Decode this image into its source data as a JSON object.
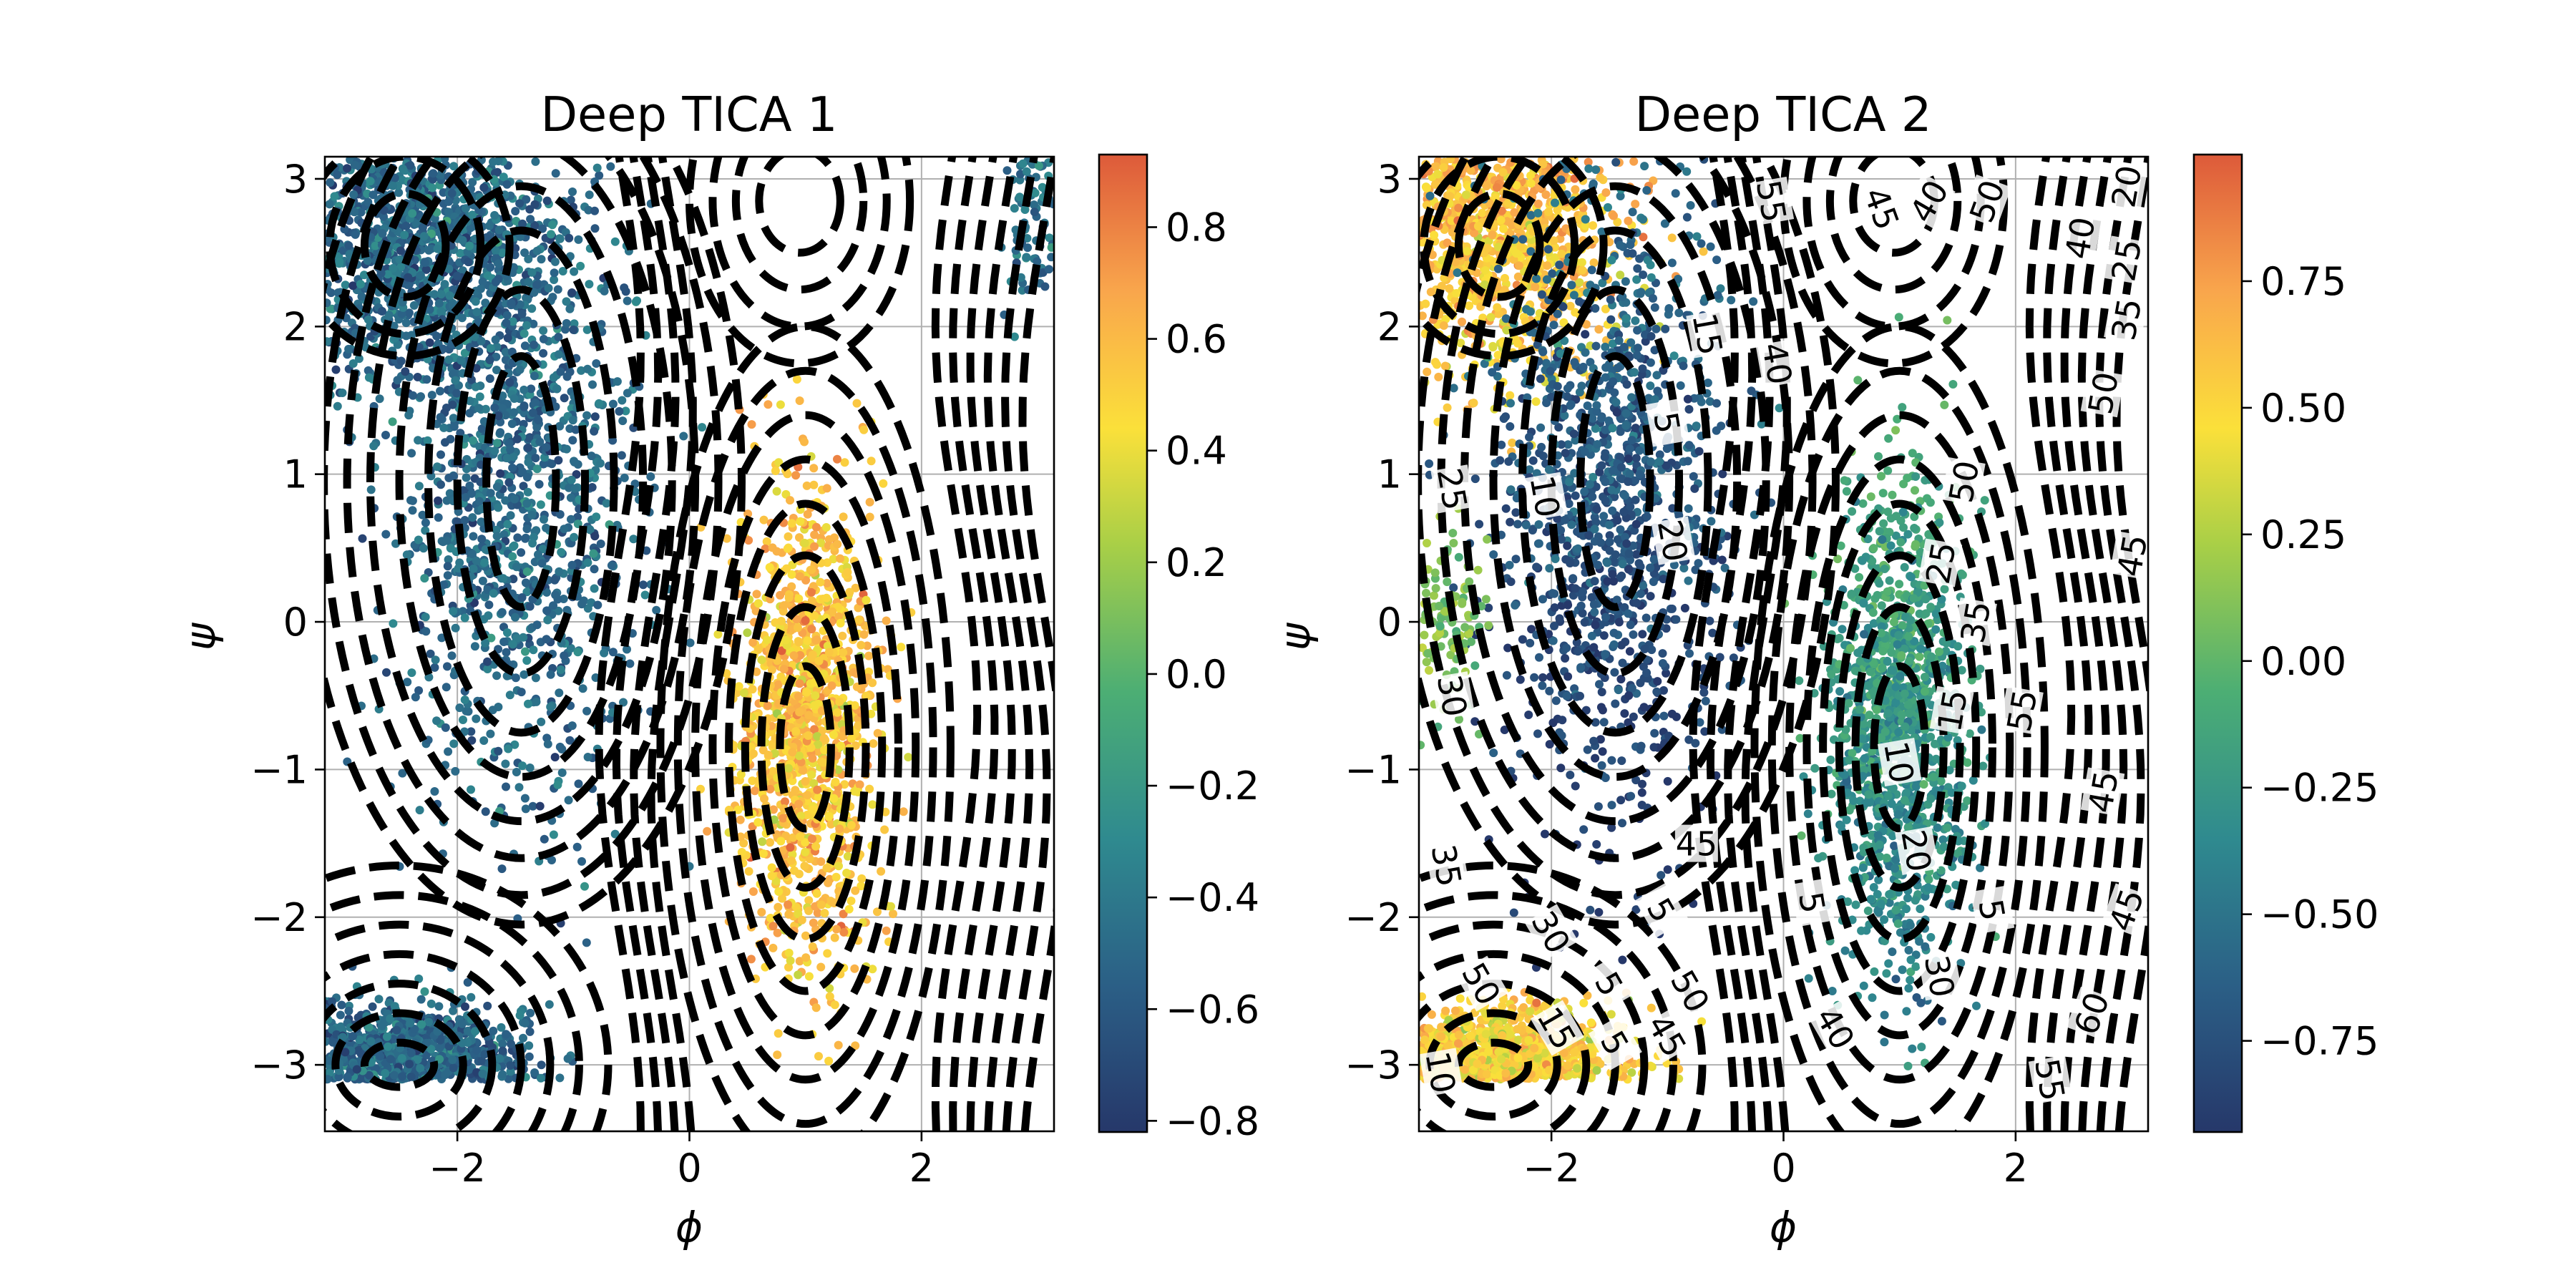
{
  "chart_data": [
    {
      "type": "scatter",
      "title": "Deep TICA 1",
      "xlabel": "ϕ",
      "ylabel": "ψ",
      "xlim": [
        -3.1416,
        3.1416
      ],
      "ylim": [
        -3.45,
        3.15
      ],
      "xticks": [
        {
          "value": -2,
          "label": "−2"
        },
        {
          "value": 0,
          "label": "0"
        },
        {
          "value": 2,
          "label": "2"
        }
      ],
      "yticks": [
        {
          "value": -3,
          "label": "−3"
        },
        {
          "value": -2,
          "label": "−2"
        },
        {
          "value": -1,
          "label": "−1"
        },
        {
          "value": 0,
          "label": "0"
        },
        {
          "value": 1,
          "label": "1"
        },
        {
          "value": 2,
          "label": "2"
        },
        {
          "value": 3,
          "label": "3"
        }
      ],
      "grid": true,
      "colormap": "viridis-to-orange",
      "colorbar": {
        "range": [
          -0.82,
          0.93
        ],
        "ticks": [
          {
            "value": 0.8,
            "label": "0.8"
          },
          {
            "value": 0.6,
            "label": "0.6"
          },
          {
            "value": 0.4,
            "label": "0.4"
          },
          {
            "value": 0.2,
            "label": "0.2"
          },
          {
            "value": 0.0,
            "label": "0.0"
          },
          {
            "value": -0.2,
            "label": "−0.2"
          },
          {
            "value": -0.4,
            "label": "−0.4"
          },
          {
            "value": -0.6,
            "label": "−0.6"
          },
          {
            "value": -0.8,
            "label": "−0.8"
          }
        ]
      },
      "point_clusters": [
        {
          "region": "upper-left basin",
          "phi": -2.4,
          "psi": 2.6,
          "value": -0.5
        },
        {
          "region": "alpha-R basin",
          "phi": -1.5,
          "psi": 0.9,
          "value": -0.5
        },
        {
          "region": "alpha-L basin",
          "phi": 1.0,
          "psi": -0.7,
          "value": 0.55
        },
        {
          "region": "lower-left basin",
          "phi": -2.5,
          "psi": -3.0,
          "value": -0.5
        },
        {
          "region": "right edge",
          "phi": 3.0,
          "psi": 2.8,
          "value": -0.45
        }
      ],
      "contour_style": "black dashed",
      "contour_labels": []
    },
    {
      "type": "scatter",
      "title": "Deep TICA 2",
      "xlabel": "ϕ",
      "ylabel": "ψ",
      "xlim": [
        -3.1416,
        3.1416
      ],
      "ylim": [
        -3.45,
        3.15
      ],
      "xticks": [
        {
          "value": -2,
          "label": "−2"
        },
        {
          "value": 0,
          "label": "0"
        },
        {
          "value": 2,
          "label": "2"
        }
      ],
      "yticks": [
        {
          "value": -3,
          "label": "−3"
        },
        {
          "value": -2,
          "label": "−2"
        },
        {
          "value": -1,
          "label": "−1"
        },
        {
          "value": 0,
          "label": "0"
        },
        {
          "value": 1,
          "label": "1"
        },
        {
          "value": 2,
          "label": "2"
        },
        {
          "value": 3,
          "label": "3"
        }
      ],
      "grid": true,
      "colormap": "viridis-to-orange",
      "colorbar": {
        "range": [
          -0.93,
          1.0
        ],
        "ticks": [
          {
            "value": 0.75,
            "label": "0.75"
          },
          {
            "value": 0.5,
            "label": "0.50"
          },
          {
            "value": 0.25,
            "label": "0.25"
          },
          {
            "value": 0.0,
            "label": "0.00"
          },
          {
            "value": -0.25,
            "label": "−0.25"
          },
          {
            "value": -0.5,
            "label": "−0.50"
          },
          {
            "value": -0.75,
            "label": "−0.75"
          }
        ]
      },
      "point_clusters": [
        {
          "region": "upper-left basin",
          "phi": -2.5,
          "psi": 2.7,
          "value": 0.6
        },
        {
          "region": "alpha-R basin",
          "phi": -1.5,
          "psi": 0.9,
          "value": -0.7
        },
        {
          "region": "alpha-L basin",
          "phi": 1.0,
          "psi": -0.7,
          "value": -0.25
        },
        {
          "region": "lower-left basin",
          "phi": -2.4,
          "psi": -3.0,
          "value": 0.5
        },
        {
          "region": "left edge",
          "phi": -2.9,
          "psi": 0.0,
          "value": 0.1
        }
      ],
      "contour_style": "black dashed",
      "contour_labels": [
        {
          "text": "55",
          "phi": -0.1,
          "psi": 2.85,
          "rotate": 80
        },
        {
          "text": "45",
          "phi": 0.85,
          "psi": 2.8,
          "rotate": 70
        },
        {
          "text": "40",
          "phi": 1.25,
          "psi": 2.85,
          "rotate": -60
        },
        {
          "text": "50",
          "phi": 1.75,
          "psi": 2.85,
          "rotate": -70
        },
        {
          "text": "20",
          "phi": 2.95,
          "psi": 2.95,
          "rotate": -80
        },
        {
          "text": "40",
          "phi": 2.55,
          "psi": 2.6,
          "rotate": -80
        },
        {
          "text": "25",
          "phi": 2.95,
          "psi": 2.45,
          "rotate": -80
        },
        {
          "text": "35",
          "phi": 2.95,
          "psi": 2.05,
          "rotate": -80
        },
        {
          "text": "50",
          "phi": 2.75,
          "psi": 1.55,
          "rotate": -80
        },
        {
          "text": "45",
          "phi": 3.0,
          "psi": 0.45,
          "rotate": -80
        },
        {
          "text": "15",
          "phi": -0.65,
          "psi": 1.95,
          "rotate": 80
        },
        {
          "text": "40",
          "phi": -0.05,
          "psi": 1.75,
          "rotate": 80
        },
        {
          "text": "5",
          "phi": -1.0,
          "psi": 1.35,
          "rotate": 80
        },
        {
          "text": "10",
          "phi": -2.05,
          "psi": 0.85,
          "rotate": 80
        },
        {
          "text": "20",
          "phi": -0.95,
          "psi": 0.55,
          "rotate": 80
        },
        {
          "text": "25",
          "phi": -2.85,
          "psi": 0.9,
          "rotate": 80
        },
        {
          "text": "50",
          "phi": 1.55,
          "psi": 0.95,
          "rotate": -80
        },
        {
          "text": "25",
          "phi": 1.35,
          "psi": 0.4,
          "rotate": -80
        },
        {
          "text": "35",
          "phi": 1.65,
          "psi": 0.0,
          "rotate": -80
        },
        {
          "text": "15",
          "phi": 1.45,
          "psi": -0.6,
          "rotate": -80
        },
        {
          "text": "55",
          "phi": 2.05,
          "psi": -0.6,
          "rotate": -80
        },
        {
          "text": "10",
          "phi": 1.0,
          "psi": -0.95,
          "rotate": 80
        },
        {
          "text": "45",
          "phi": 2.75,
          "psi": -1.15,
          "rotate": -80
        },
        {
          "text": "30",
          "phi": -2.85,
          "psi": -0.5,
          "rotate": 80
        },
        {
          "text": "45",
          "phi": -0.75,
          "psi": -1.5,
          "rotate": 0
        },
        {
          "text": "20",
          "phi": 1.15,
          "psi": -1.55,
          "rotate": 80
        },
        {
          "text": "35",
          "phi": -2.9,
          "psi": -1.65,
          "rotate": 80
        },
        {
          "text": "5",
          "phi": -1.05,
          "psi": -1.95,
          "rotate": 60
        },
        {
          "text": "5",
          "phi": 0.25,
          "psi": -1.9,
          "rotate": 80
        },
        {
          "text": "5",
          "phi": 1.8,
          "psi": -1.95,
          "rotate": 80
        },
        {
          "text": "30",
          "phi": -2.0,
          "psi": -2.1,
          "rotate": 60
        },
        {
          "text": "45",
          "phi": 2.95,
          "psi": -1.95,
          "rotate": -70
        },
        {
          "text": "50",
          "phi": -2.6,
          "psi": -2.45,
          "rotate": 60
        },
        {
          "text": "5",
          "phi": -1.5,
          "psi": -2.45,
          "rotate": 60
        },
        {
          "text": "50",
          "phi": -0.8,
          "psi": -2.5,
          "rotate": 60
        },
        {
          "text": "30",
          "phi": 1.35,
          "psi": -2.4,
          "rotate": 80
        },
        {
          "text": "15",
          "phi": -1.95,
          "psi": -2.75,
          "rotate": 60
        },
        {
          "text": "5",
          "phi": -1.45,
          "psi": -2.85,
          "rotate": 60
        },
        {
          "text": "45",
          "phi": -1.0,
          "psi": -2.8,
          "rotate": 60
        },
        {
          "text": "40",
          "phi": 0.45,
          "psi": -2.75,
          "rotate": 60
        },
        {
          "text": "60",
          "phi": 2.65,
          "psi": -2.65,
          "rotate": -70
        },
        {
          "text": "10",
          "phi": -2.95,
          "psi": -3.05,
          "rotate": 80
        },
        {
          "text": "55",
          "phi": 2.3,
          "psi": -3.1,
          "rotate": 80
        }
      ]
    }
  ]
}
